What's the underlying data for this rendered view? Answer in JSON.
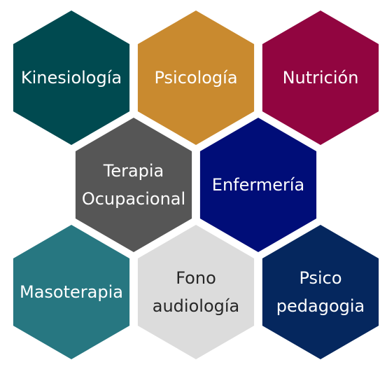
{
  "hexagons": [
    {
      "id": "kinesiologia",
      "lines": [
        "Kinesiología"
      ],
      "color": "#004a50",
      "text_color": "#ffffff"
    },
    {
      "id": "psicologia",
      "lines": [
        "Psicología"
      ],
      "color": "#c98a2f",
      "text_color": "#ffffff"
    },
    {
      "id": "nutricion",
      "lines": [
        "Nutrición"
      ],
      "color": "#910540",
      "text_color": "#ffffff"
    },
    {
      "id": "terapia-ocupacional",
      "lines": [
        "Terapia",
        "Ocupacional"
      ],
      "color": "#565656",
      "text_color": "#ffffff"
    },
    {
      "id": "enfermeria",
      "lines": [
        "Enfermería"
      ],
      "color": "#000d78",
      "text_color": "#ffffff"
    },
    {
      "id": "masoterapia",
      "lines": [
        "Masoterapia"
      ],
      "color": "#277781",
      "text_color": "#ffffff"
    },
    {
      "id": "fonoaudiologia",
      "lines": [
        "Fono",
        "audiología"
      ],
      "color": "#dcdcdc",
      "text_color": "#262626"
    },
    {
      "id": "psicopedagogia",
      "lines": [
        "Psico",
        "pedagogia"
      ],
      "color": "#05275e",
      "text_color": "#ffffff"
    }
  ]
}
